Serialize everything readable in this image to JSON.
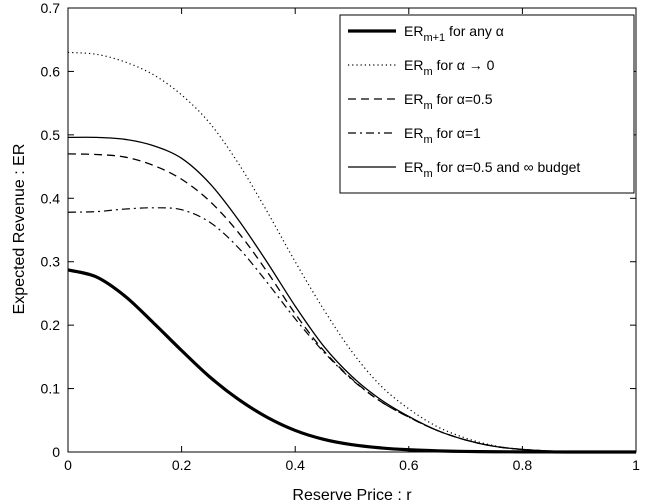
{
  "chart_data": {
    "type": "line",
    "title": "",
    "xlabel": "Reserve Price : r",
    "ylabel": "Expected Revenue : ER",
    "xlim": [
      0,
      1
    ],
    "ylim": [
      0,
      0.7
    ],
    "xticks": [
      "0",
      "0.2",
      "0.4",
      "0.6",
      "0.8",
      "1"
    ],
    "yticks": [
      "0",
      "0.1",
      "0.2",
      "0.3",
      "0.4",
      "0.5",
      "0.6",
      "0.7"
    ],
    "grid": false,
    "legend_position": "top-right",
    "x": [
      0,
      0.05,
      0.1,
      0.15,
      0.2,
      0.25,
      0.3,
      0.35,
      0.4,
      0.45,
      0.5,
      0.55,
      0.6,
      0.65,
      0.7,
      0.75,
      0.8,
      0.85,
      0.9,
      0.95,
      1.0
    ],
    "series": [
      {
        "id": "erm1_any",
        "legend_main": "ER",
        "legend_sub": "m+1",
        "legend_rest": " for any α",
        "style": "thick-solid",
        "values": [
          0.287,
          0.276,
          0.246,
          0.204,
          0.16,
          0.118,
          0.083,
          0.055,
          0.034,
          0.02,
          0.0115,
          0.0065,
          0.0035,
          0.0018,
          0.0009,
          0.0004,
          0.0002,
          0.0001,
          0.0,
          0.0,
          0.0
        ]
      },
      {
        "id": "erm_alpha0",
        "legend_main": "ER",
        "legend_sub": "m",
        "legend_rest": " for α → 0",
        "style": "dotted",
        "values": [
          0.63,
          0.627,
          0.615,
          0.595,
          0.563,
          0.518,
          0.455,
          0.38,
          0.3,
          0.225,
          0.158,
          0.105,
          0.068,
          0.04,
          0.022,
          0.01,
          0.004,
          0.0015,
          0.0005,
          0.0002,
          0.0
        ]
      },
      {
        "id": "erm_alpha05",
        "legend_main": "ER",
        "legend_sub": "m",
        "legend_rest": " for α=0.5",
        "style": "dashed",
        "values": [
          0.47,
          0.469,
          0.465,
          0.452,
          0.43,
          0.395,
          0.346,
          0.285,
          0.218,
          0.16,
          0.115,
          0.08,
          0.055,
          0.034,
          0.019,
          0.009,
          0.004,
          0.0015,
          0.0005,
          0.0002,
          0.0
        ]
      },
      {
        "id": "erm_alpha1",
        "legend_main": "ER",
        "legend_sub": "m",
        "legend_rest": " for α=1",
        "style": "dashdot",
        "values": [
          0.378,
          0.379,
          0.383,
          0.385,
          0.382,
          0.362,
          0.322,
          0.268,
          0.21,
          0.158,
          0.114,
          0.08,
          0.055,
          0.034,
          0.019,
          0.009,
          0.004,
          0.0015,
          0.0005,
          0.0002,
          0.0
        ]
      },
      {
        "id": "erm_alpha05_inf",
        "legend_main": "ER",
        "legend_sub": "m",
        "legend_rest": " for α=0.5 and ∞ budget",
        "style": "solid",
        "values": [
          0.496,
          0.496,
          0.493,
          0.483,
          0.463,
          0.423,
          0.366,
          0.3,
          0.23,
          0.167,
          0.119,
          0.083,
          0.056,
          0.034,
          0.019,
          0.009,
          0.004,
          0.0015,
          0.0005,
          0.0002,
          0.0
        ]
      }
    ]
  }
}
